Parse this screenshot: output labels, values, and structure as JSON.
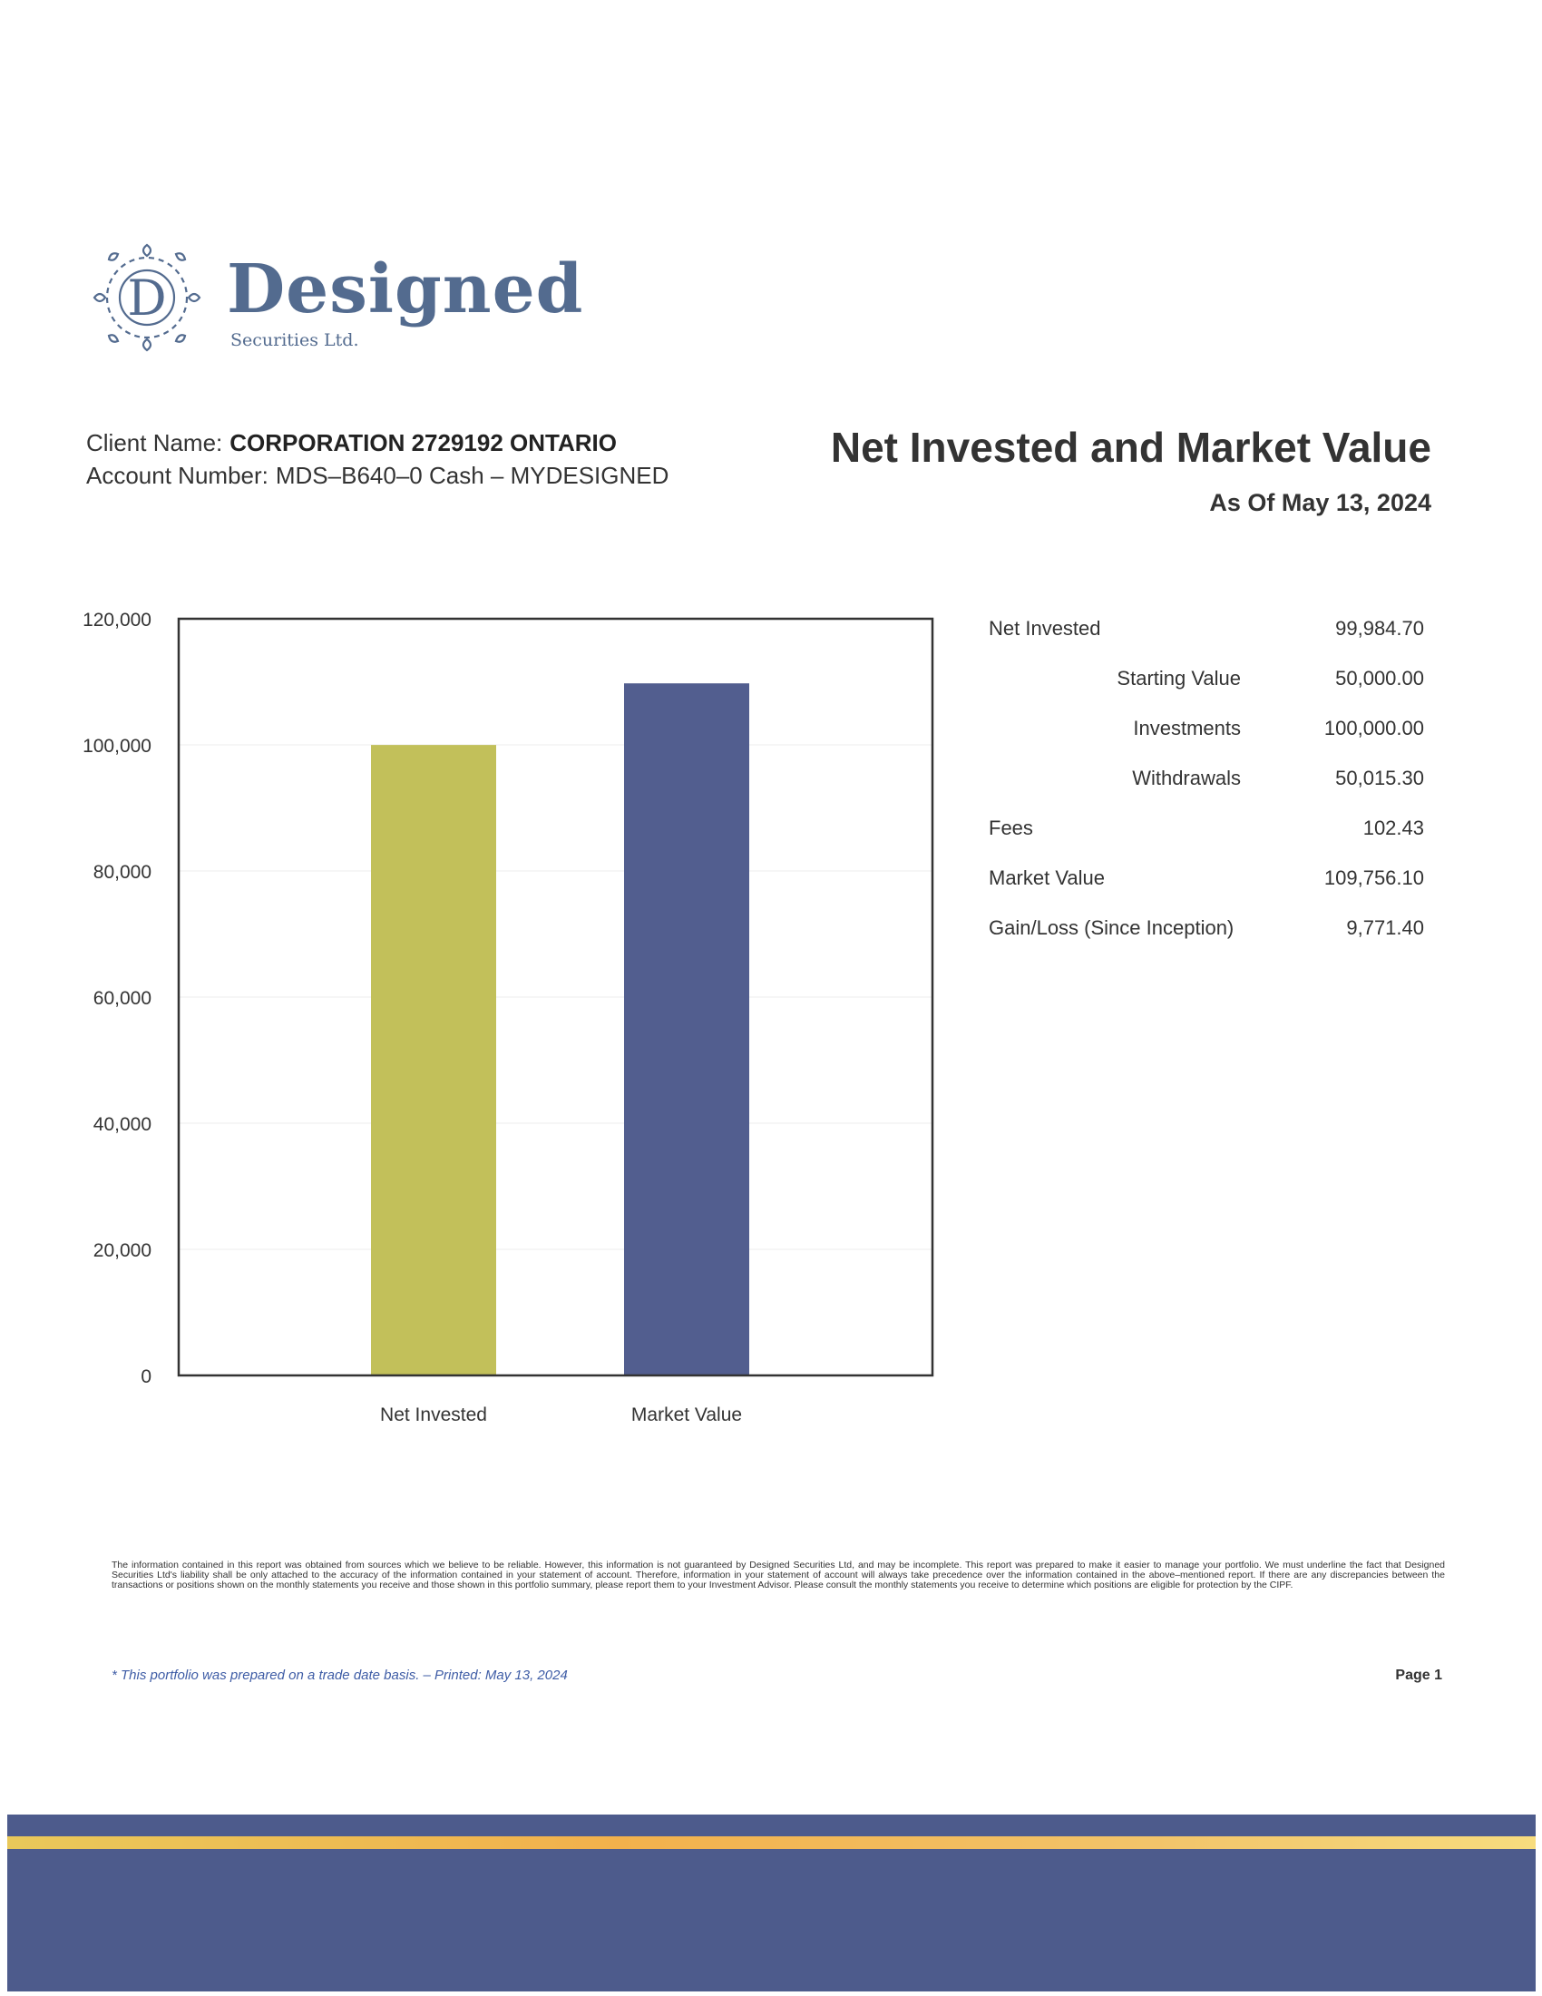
{
  "brand": {
    "name": "Designed",
    "subtitle": "Securities Ltd.",
    "logo_letter": "D",
    "primary_color": "#536b8f"
  },
  "client": {
    "name_label": "Client Name:",
    "name_value": "CORPORATION 2729192  ONTARIO",
    "account_label": "Account Number:",
    "account_value": "MDS–B640–0 Cash – MYDESIGNED"
  },
  "report": {
    "title": "Net Invested and Market Value",
    "date": "As Of May 13, 2024"
  },
  "chart_data": {
    "type": "bar",
    "categories": [
      "Net Invested",
      "Market Value"
    ],
    "values": [
      99984.7,
      109756.1
    ],
    "colors": [
      "#c2c05a",
      "#525e8f"
    ],
    "ylim": [
      0,
      120000
    ],
    "yticks": [
      "0",
      "20,000",
      "40,000",
      "60,000",
      "80,000",
      "100,000",
      "120,000"
    ],
    "ytick_values": [
      0,
      20000,
      40000,
      60000,
      80000,
      100000,
      120000
    ],
    "title": "",
    "xlabel": "",
    "ylabel": "",
    "grid": true,
    "legend": "none"
  },
  "summary": [
    {
      "label": "Net Invested",
      "value": "99,984.70",
      "indent": false
    },
    {
      "label": "Starting Value",
      "value": "50,000.00",
      "indent": true
    },
    {
      "label": "Investments",
      "value": "100,000.00",
      "indent": true
    },
    {
      "label": "Withdrawals",
      "value": "50,015.30",
      "indent": true
    },
    {
      "label": "Fees",
      "value": "102.43",
      "indent": false
    },
    {
      "label": "Market Value",
      "value": "109,756.10",
      "indent": false
    },
    {
      "label": "Gain/Loss (Since Inception)",
      "value": "9,771.40",
      "indent": false
    }
  ],
  "footer": {
    "disclaimer": "The information contained in this report was obtained from sources which we believe to be reliable. However, this information is not guaranteed by Designed Securities Ltd, and may be incomplete. This report was prepared to make it easier to manage your portfolio. We must underline the fact that Designed Securities Ltd's liability shall be only attached to the accuracy of the information contained in your statement of account. Therefore, information in your statement of account will always take precedence over the information contained in the above–mentioned report. If there are any discrepancies between the transactions or positions shown on the monthly statements you receive and those shown in this portfolio summary, please report them to your Investment Advisor. Please consult the monthly statements you receive to determine which positions are eligible for protection by the CIPF.",
    "note": "* This portfolio was prepared on a trade date basis. – Printed: May 13, 2024",
    "page": "Page 1"
  },
  "band": {
    "color": "#4d5b8c",
    "stripe_color": "#f2b94c"
  }
}
